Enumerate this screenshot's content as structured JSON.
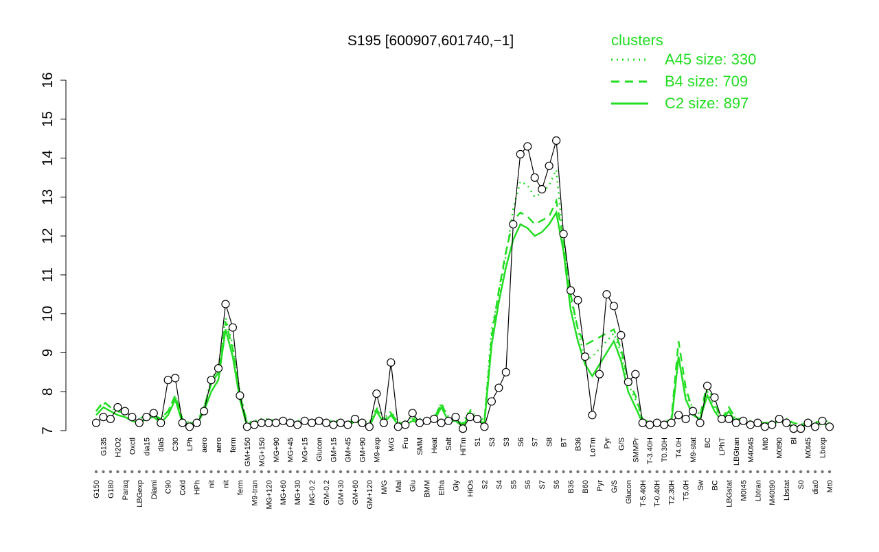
{
  "chart_data": {
    "type": "line",
    "title": "S195 [600907,601740,−1]",
    "categories": [
      "G150",
      "G135",
      "G180",
      "H2O2",
      "Paraq",
      "Oxctl",
      "LBGexp",
      "dia15",
      "Diami",
      "dia5",
      "C90",
      "C30",
      "Cold",
      "LPh",
      "HPh",
      "aero",
      "nit",
      "aero",
      "nit",
      "ferm",
      "ferm",
      "GM+150",
      "M9-tran",
      "MG+150",
      "MG+120",
      "MG+90",
      "MG+60",
      "MG+45",
      "MG+30",
      "MG+15",
      "MG-0.2",
      "Glucon",
      "GM-0.2",
      "GM+15",
      "GM+30",
      "GM+45",
      "GM+60",
      "GM+90",
      "GM+120",
      "M9-exp",
      "M/G",
      "M/G",
      "Mal",
      "Fru",
      "Glu",
      "SMM",
      "BMM",
      "Heat",
      "Etha",
      "Salt",
      "Gly",
      "HiTm",
      "HiOs",
      "S1",
      "S2",
      "S3",
      "S4",
      "S3",
      "S5",
      "S6",
      "S6",
      "S7",
      "S7",
      "S8",
      "S6",
      "BT",
      "B36",
      "B36",
      "B60",
      "LoTm",
      "Pyr",
      "Pyr",
      "G/S",
      "G/S",
      "Glucon",
      "SMMPr",
      "T-5.40H",
      "T-3.40H",
      "T-0.40H",
      "T0.30H",
      "T2.30H",
      "T4.0H",
      "T5.0H",
      "M9-stat",
      "Sw",
      "BC",
      "BC",
      "LPhT",
      "LBGstat",
      "LBGtran",
      "M0t45",
      "M40t45",
      "Lbtran",
      "Mt0",
      "M40t90",
      "M0t90",
      "Lbstat",
      "Bl",
      "S0",
      "M0t45",
      "dia0",
      "Lbexp",
      "Mt0"
    ],
    "values": [
      7.2,
      7.35,
      7.3,
      7.6,
      7.5,
      7.35,
      7.2,
      7.35,
      7.45,
      7.2,
      8.3,
      8.35,
      7.2,
      7.1,
      7.2,
      7.5,
      8.3,
      8.6,
      10.25,
      9.65,
      7.9,
      7.1,
      7.15,
      7.2,
      7.2,
      7.2,
      7.25,
      7.2,
      7.15,
      7.25,
      7.2,
      7.25,
      7.2,
      7.15,
      7.2,
      7.15,
      7.3,
      7.2,
      7.1,
      7.95,
      7.2,
      8.75,
      7.1,
      7.15,
      7.45,
      7.2,
      7.25,
      7.3,
      7.2,
      7.25,
      7.35,
      7.05,
      7.35,
      7.3,
      7.1,
      7.75,
      8.1,
      8.5,
      12.3,
      14.1,
      14.3,
      13.5,
      13.2,
      13.8,
      14.45,
      12.05,
      10.6,
      10.35,
      8.9,
      7.4,
      8.45,
      10.5,
      10.2,
      9.45,
      8.25,
      8.45,
      7.2,
      7.15,
      7.2,
      7.15,
      7.2,
      7.4,
      7.3,
      7.5,
      7.2,
      8.15,
      7.85,
      7.3,
      7.3,
      7.2,
      7.25,
      7.15,
      7.2,
      7.1,
      7.15,
      7.3,
      7.2,
      7.05,
      7.05,
      7.2,
      7.1,
      7.25,
      7.1
    ],
    "color": "#000000",
    "legend_title": "clusters",
    "legend": "top-right",
    "series": [
      {
        "name": "A45 size: 330",
        "color": "#22dd22",
        "dash": "dotted",
        "values": [
          7.5,
          7.7,
          7.6,
          7.5,
          7.4,
          7.3,
          7.3,
          7.4,
          7.4,
          7.3,
          7.5,
          7.9,
          7.3,
          7.2,
          7.2,
          7.6,
          8.3,
          8.6,
          9.9,
          9.2,
          8.0,
          7.2,
          7.25,
          7.3,
          7.3,
          7.25,
          7.3,
          7.25,
          7.25,
          7.3,
          7.25,
          7.3,
          7.25,
          7.25,
          7.25,
          7.2,
          7.35,
          7.25,
          7.2,
          7.6,
          7.3,
          7.5,
          7.2,
          7.25,
          7.35,
          7.3,
          7.3,
          7.35,
          7.7,
          7.35,
          7.3,
          7.2,
          7.55,
          7.3,
          7.3,
          9.6,
          10.5,
          11.5,
          12.7,
          13.4,
          13.3,
          13.0,
          13.1,
          13.3,
          13.7,
          11.8,
          10.4,
          9.6,
          8.8,
          8.9,
          9.1,
          9.3,
          9.5,
          9.0,
          8.2,
          7.8,
          7.3,
          7.2,
          7.2,
          7.2,
          7.3,
          8.9,
          7.9,
          7.6,
          7.4,
          8.0,
          7.6,
          7.3,
          7.5,
          7.3,
          7.3,
          7.25,
          7.25,
          7.2,
          7.25,
          7.35,
          7.3,
          7.2,
          7.15,
          7.25,
          7.2,
          7.3,
          7.2
        ]
      },
      {
        "name": "B4 size: 709",
        "color": "#22dd22",
        "dash": "dashed",
        "values": [
          7.5,
          7.75,
          7.6,
          7.5,
          7.45,
          7.3,
          7.3,
          7.4,
          7.4,
          7.3,
          7.5,
          7.9,
          7.3,
          7.2,
          7.2,
          7.6,
          8.2,
          8.5,
          9.8,
          9.1,
          7.9,
          7.2,
          7.2,
          7.25,
          7.25,
          7.25,
          7.25,
          7.2,
          7.2,
          7.25,
          7.2,
          7.25,
          7.2,
          7.2,
          7.2,
          7.2,
          7.3,
          7.2,
          7.15,
          7.55,
          7.25,
          7.45,
          7.2,
          7.2,
          7.3,
          7.25,
          7.3,
          7.3,
          7.7,
          7.3,
          7.3,
          7.15,
          7.5,
          7.3,
          7.25,
          9.4,
          10.6,
          11.6,
          12.4,
          12.6,
          12.5,
          12.3,
          12.4,
          12.5,
          12.9,
          11.9,
          10.5,
          9.6,
          9.2,
          9.3,
          9.4,
          9.5,
          9.6,
          9.1,
          8.3,
          7.9,
          7.3,
          7.2,
          7.2,
          7.2,
          7.3,
          9.3,
          8.1,
          7.5,
          7.4,
          8.2,
          7.7,
          7.3,
          7.6,
          7.3,
          7.3,
          7.2,
          7.2,
          7.2,
          7.2,
          7.3,
          7.25,
          7.2,
          7.15,
          7.2,
          7.2,
          7.25,
          7.2
        ]
      },
      {
        "name": "C2 size: 897",
        "color": "#22dd22",
        "dash": "solid",
        "values": [
          7.4,
          7.6,
          7.5,
          7.4,
          7.35,
          7.25,
          7.2,
          7.3,
          7.35,
          7.2,
          7.4,
          7.8,
          7.2,
          7.15,
          7.15,
          7.5,
          8.0,
          8.3,
          9.6,
          8.9,
          7.8,
          7.1,
          7.15,
          7.2,
          7.2,
          7.2,
          7.2,
          7.15,
          7.15,
          7.2,
          7.15,
          7.2,
          7.15,
          7.15,
          7.15,
          7.1,
          7.25,
          7.15,
          7.1,
          7.5,
          7.2,
          7.4,
          7.15,
          7.15,
          7.25,
          7.2,
          7.25,
          7.25,
          7.6,
          7.25,
          7.25,
          7.1,
          7.45,
          7.25,
          7.2,
          9.2,
          10.3,
          11.2,
          11.9,
          12.3,
          12.2,
          12.0,
          12.1,
          12.3,
          12.6,
          11.6,
          10.1,
          9.3,
          8.7,
          8.4,
          8.7,
          9.0,
          9.3,
          8.8,
          8.0,
          7.6,
          7.2,
          7.15,
          7.15,
          7.15,
          7.2,
          8.9,
          7.8,
          7.4,
          7.3,
          7.9,
          7.5,
          7.25,
          7.5,
          7.2,
          7.2,
          7.15,
          7.15,
          7.1,
          7.15,
          7.25,
          7.2,
          7.1,
          7.1,
          7.15,
          7.1,
          7.2,
          7.1
        ]
      }
    ],
    "ylim": [
      7,
      16
    ],
    "yticks": [
      7,
      8,
      9,
      10,
      11,
      12,
      13,
      14,
      15,
      16
    ]
  }
}
